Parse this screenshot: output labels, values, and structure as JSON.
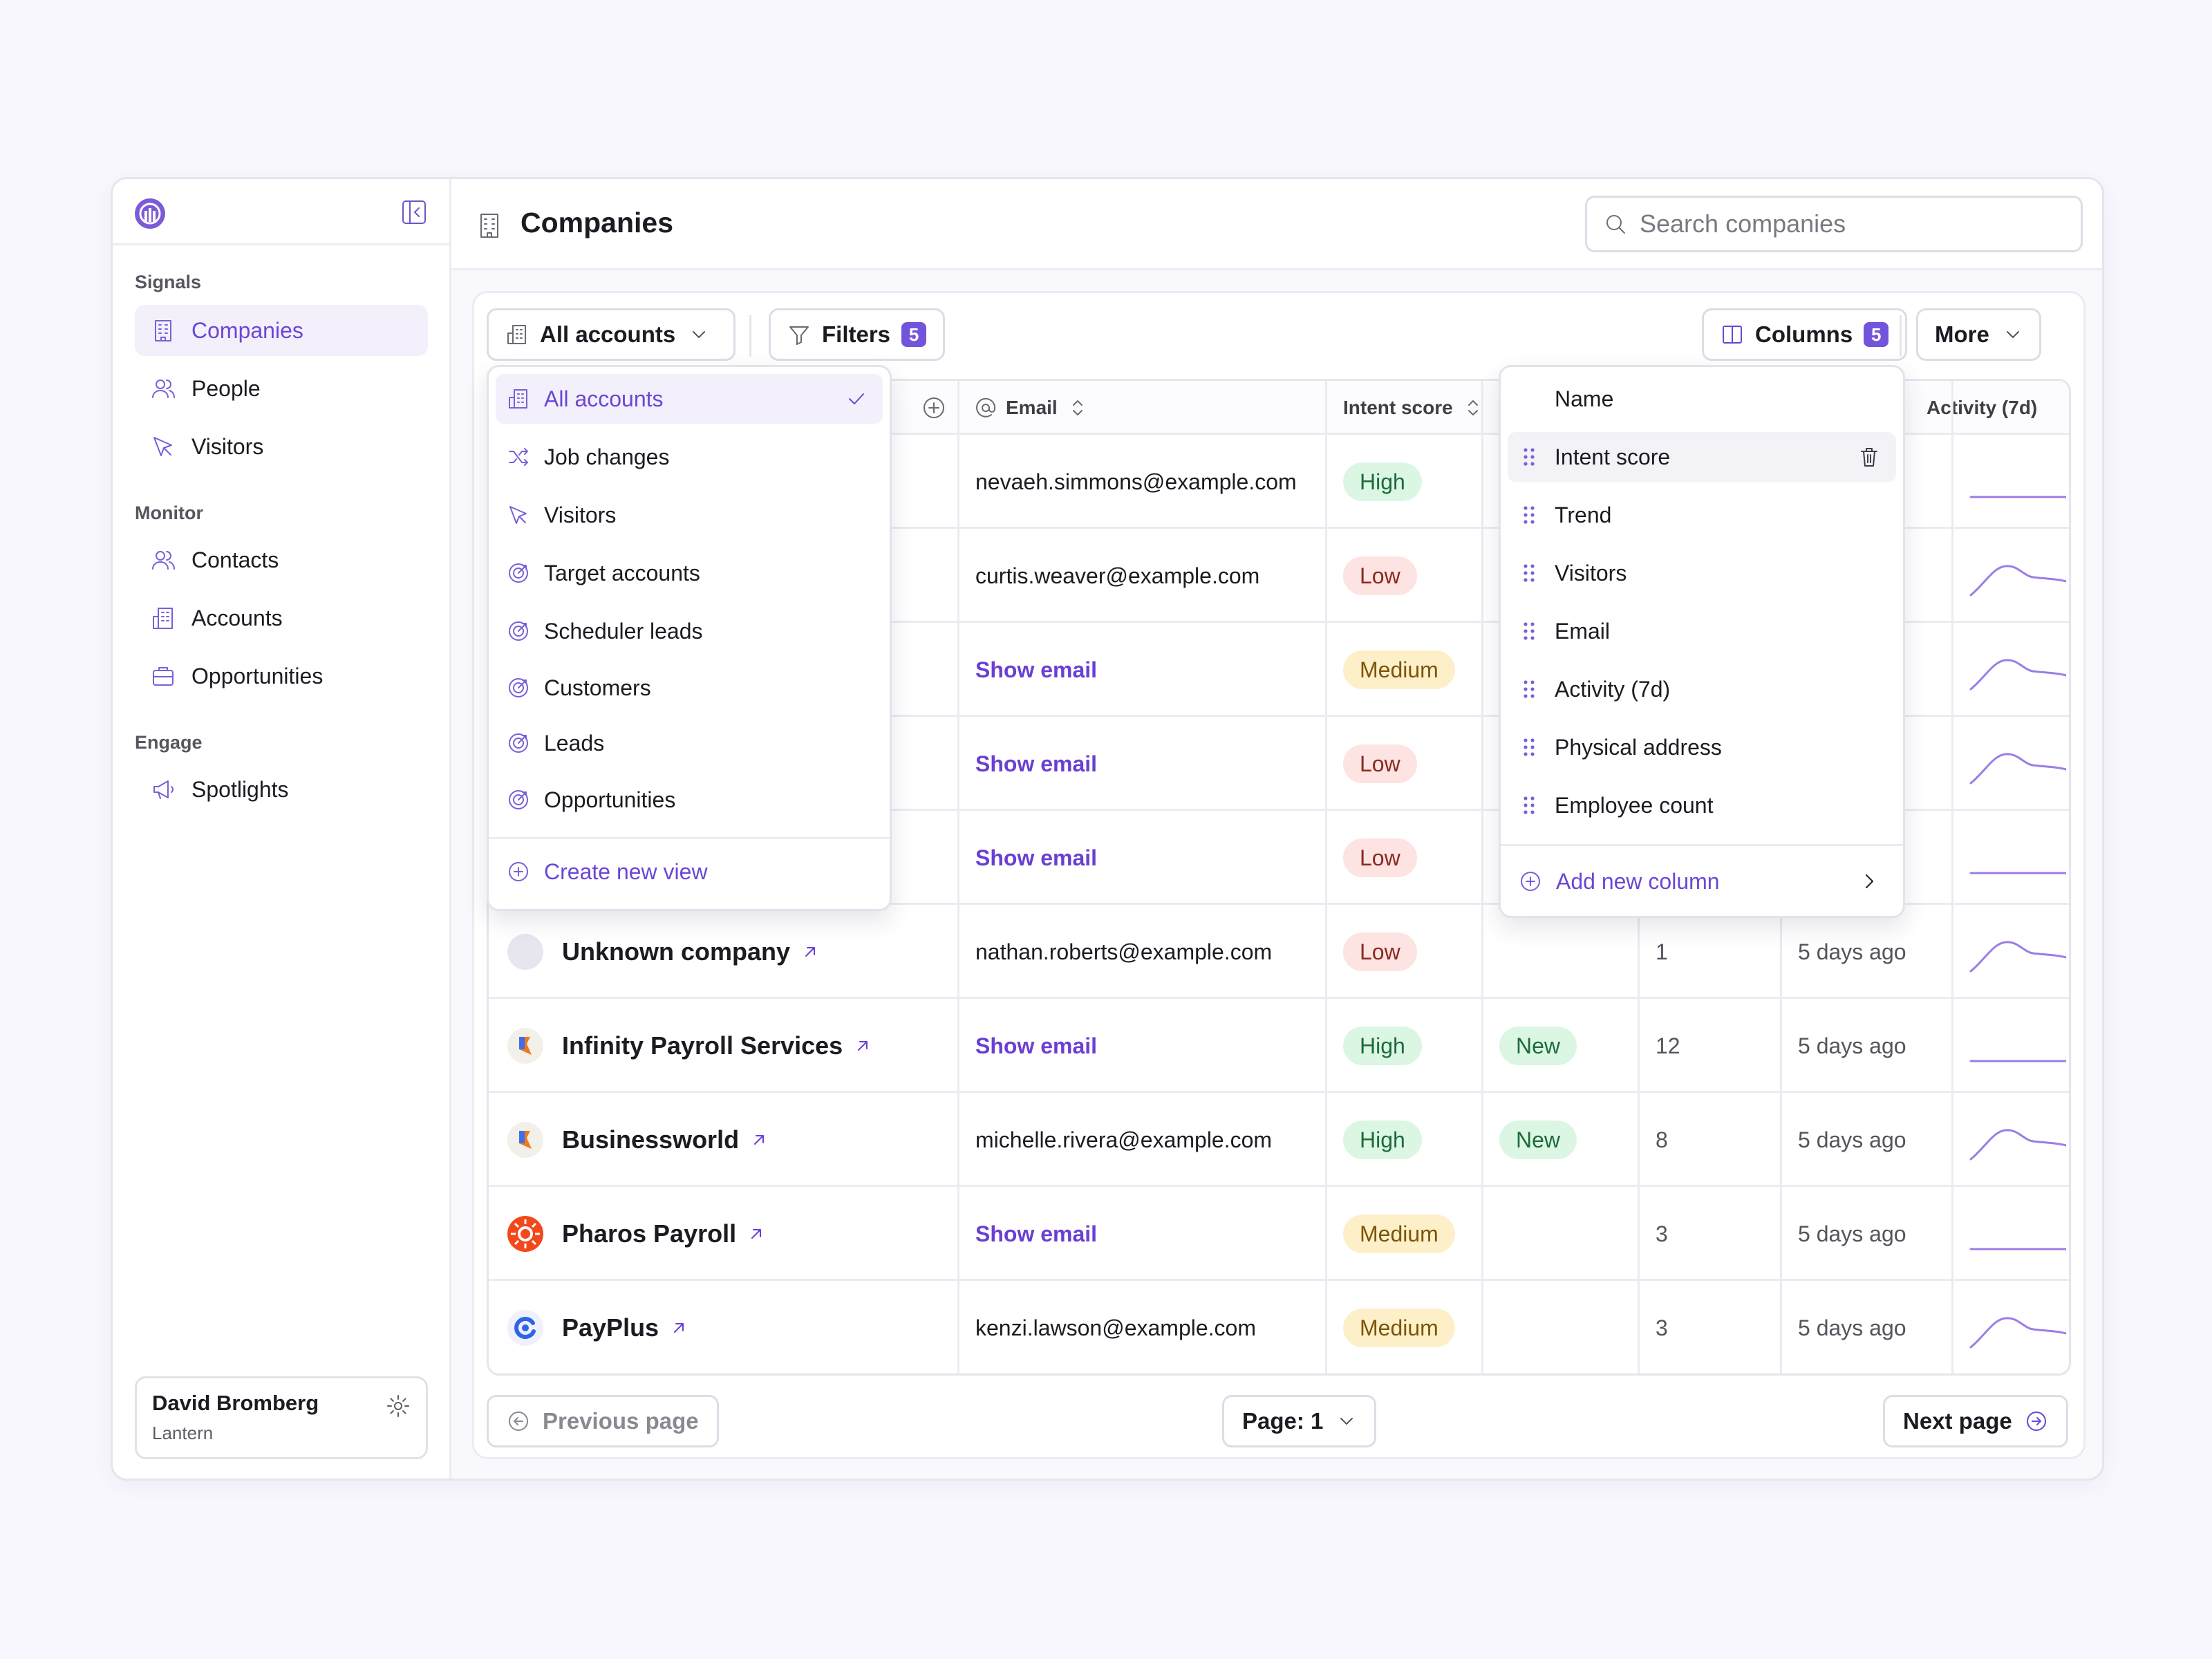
{
  "sidebar": {
    "sections": [
      {
        "label": "Signals",
        "items": [
          {
            "label": "Companies",
            "icon": "building-icon",
            "active": true
          },
          {
            "label": "People",
            "icon": "people-icon"
          },
          {
            "label": "Visitors",
            "icon": "cursor-icon"
          }
        ]
      },
      {
        "label": "Monitor",
        "items": [
          {
            "label": "Contacts",
            "icon": "contacts-icon"
          },
          {
            "label": "Accounts",
            "icon": "accounts-icon"
          },
          {
            "label": "Opportunities",
            "icon": "briefcase-icon"
          }
        ]
      },
      {
        "label": "Engage",
        "items": [
          {
            "label": "Spotlights",
            "icon": "megaphone-icon"
          }
        ]
      }
    ],
    "user": {
      "name": "David Bromberg",
      "org": "Lantern"
    }
  },
  "header": {
    "title": "Companies",
    "search_placeholder": "Search companies"
  },
  "toolbar": {
    "view_label": "All accounts",
    "filters_label": "Filters",
    "filters_count": "5",
    "columns_label": "Columns",
    "columns_count": "5",
    "more_label": "More"
  },
  "table": {
    "headers": {
      "email": "Email",
      "intent": "Intent score",
      "activity": "Activity (7d)"
    },
    "rows": [
      {
        "company": "",
        "email": "nevaeh.simmons@example.com",
        "email_hidden": false,
        "intent": "High",
        "trend": "",
        "visitors": "",
        "last_seen": "",
        "spark": "flat"
      },
      {
        "company": "",
        "email": "curtis.weaver@example.com",
        "email_hidden": false,
        "intent": "Low",
        "trend": "",
        "visitors": "",
        "last_seen": "",
        "spark": "peak"
      },
      {
        "company": "",
        "email": "Show email",
        "email_hidden": true,
        "intent": "Medium",
        "trend": "",
        "visitors": "",
        "last_seen": "",
        "spark": "peak"
      },
      {
        "company": "",
        "email": "Show email",
        "email_hidden": true,
        "intent": "Low",
        "trend": "",
        "visitors": "",
        "last_seen": "",
        "spark": "peak"
      },
      {
        "company": "",
        "email": "Show email",
        "email_hidden": true,
        "intent": "Low",
        "trend": "",
        "visitors": "",
        "last_seen": "",
        "spark": "flat"
      },
      {
        "company": "Unknown company",
        "logo": "unknown",
        "email": "nathan.roberts@example.com",
        "email_hidden": false,
        "intent": "Low",
        "trend": "",
        "visitors": "1",
        "last_seen": "5 days ago",
        "spark": "peak"
      },
      {
        "company": "Infinity Payroll Services",
        "logo": "flag",
        "email": "Show email",
        "email_hidden": true,
        "intent": "High",
        "trend": "New",
        "visitors": "12",
        "last_seen": "5 days ago",
        "spark": "flat"
      },
      {
        "company": "Businessworld",
        "logo": "flag",
        "email": "michelle.rivera@example.com",
        "email_hidden": false,
        "intent": "High",
        "trend": "New",
        "visitors": "8",
        "last_seen": "5 days ago",
        "spark": "peak"
      },
      {
        "company": "Pharos Payroll",
        "logo": "sun",
        "email": "Show email",
        "email_hidden": true,
        "intent": "Medium",
        "trend": "",
        "visitors": "3",
        "last_seen": "5 days ago",
        "spark": "flat"
      },
      {
        "company": "PayPlus",
        "logo": "ring",
        "email": "kenzi.lawson@example.com",
        "email_hidden": false,
        "intent": "Medium",
        "trend": "",
        "visitors": "3",
        "last_seen": "5 days ago",
        "spark": "peak"
      }
    ]
  },
  "views_menu": {
    "items": [
      {
        "label": "All accounts",
        "icon": "accounts-icon",
        "active": true
      },
      {
        "label": "Job changes",
        "icon": "shuffle-icon"
      },
      {
        "label": "Visitors",
        "icon": "cursor-icon"
      },
      {
        "label": "Target accounts",
        "icon": "target-icon"
      },
      {
        "label": "Scheduler leads",
        "icon": "target-icon"
      },
      {
        "label": "Customers",
        "icon": "target-icon"
      },
      {
        "label": "Leads",
        "icon": "target-icon"
      },
      {
        "label": "Opportunities",
        "icon": "target-icon"
      }
    ],
    "create_label": "Create new view"
  },
  "columns_menu": {
    "items": [
      {
        "label": "Name",
        "grip": false
      },
      {
        "label": "Intent score",
        "grip": true,
        "active": true
      },
      {
        "label": "Trend",
        "grip": true
      },
      {
        "label": "Visitors",
        "grip": true
      },
      {
        "label": "Email",
        "grip": true
      },
      {
        "label": "Activity (7d)",
        "grip": true
      },
      {
        "label": "Physical address",
        "grip": true
      },
      {
        "label": "Employee count",
        "grip": true
      }
    ],
    "add_label": "Add new column"
  },
  "pagination": {
    "prev_label": "Previous page",
    "page_label": "Page: 1",
    "next_label": "Next page"
  },
  "colors": {
    "accent": "#6b46d6",
    "accent_bg": "#f3f0fc"
  }
}
